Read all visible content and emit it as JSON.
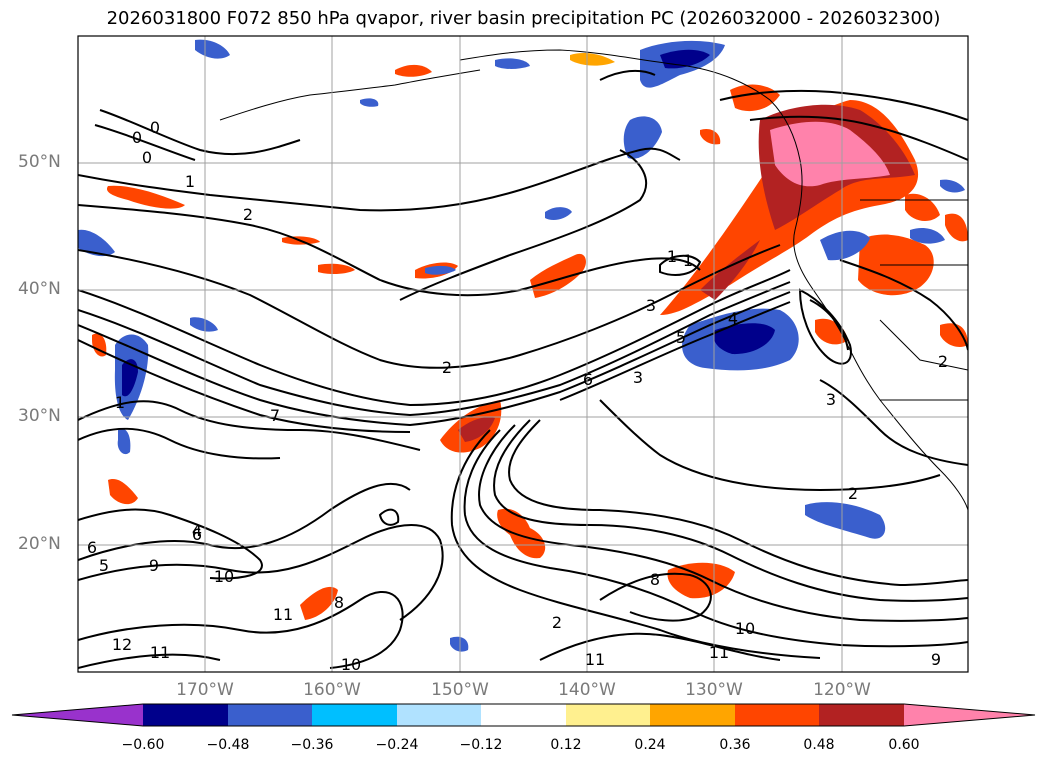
{
  "title": "2026031800 F072 850 hPa qvapor, river basin precipitation PC (2026032000 - 2026032300)",
  "map": {
    "latitude_labels": [
      "50°N",
      "40°N",
      "30°N",
      "20°N"
    ],
    "longitude_labels": [
      "170°W",
      "160°W",
      "150°W",
      "140°W",
      "130°W",
      "120°W"
    ],
    "contour_labels": [
      "0",
      "0",
      "0",
      "1",
      "2",
      "2",
      "1",
      "1",
      "3",
      "5",
      "4",
      "2",
      "6",
      "3",
      "7",
      "1",
      "4",
      "6",
      "6",
      "5",
      "9",
      "10",
      "11",
      "8",
      "12",
      "11",
      "10",
      "8",
      "11",
      "10",
      "11",
      "9",
      "2",
      "3",
      "2"
    ]
  },
  "colorbar": {
    "tick_labels": [
      "−0.60",
      "−0.48",
      "−0.36",
      "−0.24",
      "−0.12",
      "0.12",
      "0.24",
      "0.36",
      "0.48",
      "0.60"
    ],
    "colors": [
      "#9932cc",
      "#00008b",
      "#3a5fcd",
      "#00bfff",
      "#b0e2ff",
      "#ffffff",
      "#fff08f",
      "#ffa500",
      "#ff4500",
      "#b22222",
      "#ff82ab"
    ]
  }
}
